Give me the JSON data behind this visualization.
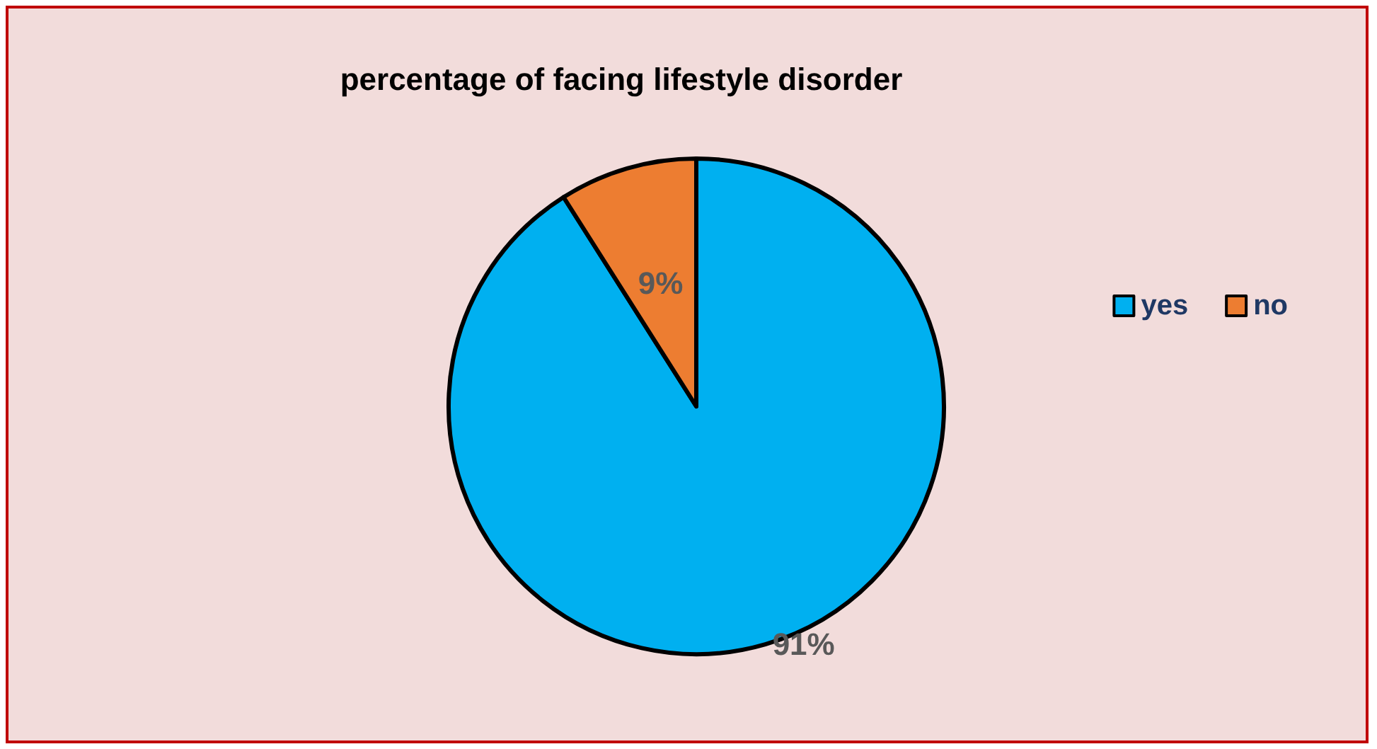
{
  "chart_data": {
    "type": "pie",
    "title": "percentage of facing lifestyle disorder",
    "categories": [
      "yes",
      "no"
    ],
    "values": [
      91,
      9
    ],
    "value_labels": [
      "91%",
      "9%"
    ],
    "colors": [
      "#00b0f0",
      "#ed7d31"
    ],
    "legend": "right"
  }
}
